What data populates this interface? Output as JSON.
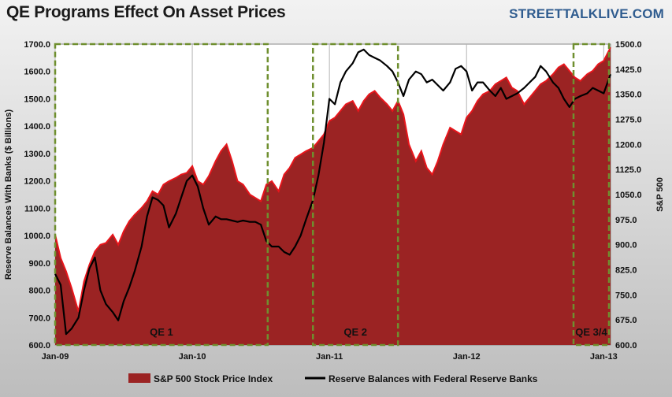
{
  "header": {
    "title": "QE Programs Effect On Asset Prices",
    "brand": "STREETTALKLIVE.COM"
  },
  "colors": {
    "sp_fill": "#9b2323",
    "sp_edge": "#e8151b",
    "reserve_line": "#000000",
    "qe_box": "#6f8f2f",
    "grid": "#b5b5b5",
    "plot_bg": "#ffffff"
  },
  "chart_data": {
    "type": "area",
    "title": "QE Programs Effect On Asset Prices",
    "x_tick_labels": [
      "Jan-09",
      "Jan-10",
      "Jan-11",
      "Jan-12",
      "Jan-13"
    ],
    "xlim": [
      2009.0,
      2013.05
    ],
    "left_axis": {
      "label": "Reserve Balances  With Banks  ($ Billions)",
      "ylim": [
        600,
        1700
      ],
      "ticks": [
        "600.0",
        "700.0",
        "800.0",
        "900.0",
        "1000.0",
        "1100.0",
        "1200.0",
        "1300.0",
        "1400.0",
        "1500.0",
        "1600.0",
        "1700.0"
      ]
    },
    "right_axis": {
      "label": "S&P 500",
      "ylim": [
        600,
        1500
      ],
      "ticks": [
        "600.0",
        "675.0",
        "750.0",
        "825.0",
        "900.0",
        "975.0",
        "1050.0",
        "1125.0",
        "1200.0",
        "1275.0",
        "1350.0",
        "1425.0",
        "1500.0"
      ]
    },
    "grid": "vertical",
    "legend_position": "bottom",
    "series": [
      {
        "name": "S&P 500 Stock Price Index",
        "kind": "area",
        "axis": "right",
        "x": [
          2009.0,
          2009.04,
          2009.08,
          2009.12,
          2009.17,
          2009.21,
          2009.25,
          2009.29,
          2009.33,
          2009.37,
          2009.42,
          2009.46,
          2009.5,
          2009.54,
          2009.58,
          2009.63,
          2009.67,
          2009.71,
          2009.75,
          2009.79,
          2009.83,
          2009.88,
          2009.92,
          2009.96,
          2010.0,
          2010.04,
          2010.08,
          2010.12,
          2010.17,
          2010.21,
          2010.25,
          2010.29,
          2010.33,
          2010.37,
          2010.42,
          2010.46,
          2010.5,
          2010.54,
          2010.58,
          2010.63,
          2010.67,
          2010.71,
          2010.75,
          2010.79,
          2010.83,
          2010.88,
          2010.92,
          2010.96,
          2011.0,
          2011.04,
          2011.08,
          2011.12,
          2011.17,
          2011.21,
          2011.25,
          2011.29,
          2011.33,
          2011.37,
          2011.42,
          2011.46,
          2011.5,
          2011.54,
          2011.58,
          2011.63,
          2011.67,
          2011.71,
          2011.75,
          2011.79,
          2011.83,
          2011.88,
          2011.92,
          2011.96,
          2012.0,
          2012.04,
          2012.08,
          2012.12,
          2012.17,
          2012.21,
          2012.25,
          2012.29,
          2012.33,
          2012.37,
          2012.42,
          2012.46,
          2012.5,
          2012.54,
          2012.58,
          2012.63,
          2012.67,
          2012.71,
          2012.75,
          2012.79,
          2012.83,
          2012.88,
          2012.92,
          2012.96,
          2013.0,
          2013.05
        ],
        "values": [
          930,
          860,
          820,
          770,
          700,
          790,
          840,
          880,
          900,
          905,
          930,
          900,
          940,
          970,
          990,
          1010,
          1030,
          1060,
          1050,
          1080,
          1090,
          1100,
          1110,
          1115,
          1135,
          1090,
          1080,
          1105,
          1150,
          1180,
          1200,
          1150,
          1090,
          1080,
          1050,
          1040,
          1030,
          1080,
          1090,
          1060,
          1110,
          1130,
          1160,
          1170,
          1180,
          1190,
          1210,
          1230,
          1270,
          1280,
          1300,
          1320,
          1330,
          1300,
          1330,
          1350,
          1360,
          1340,
          1320,
          1300,
          1330,
          1290,
          1200,
          1150,
          1180,
          1130,
          1110,
          1150,
          1200,
          1250,
          1240,
          1230,
          1280,
          1300,
          1330,
          1350,
          1360,
          1380,
          1390,
          1400,
          1370,
          1360,
          1320,
          1340,
          1360,
          1380,
          1390,
          1410,
          1430,
          1440,
          1420,
          1400,
          1390,
          1410,
          1420,
          1440,
          1450,
          1490
        ]
      },
      {
        "name": "Reserve Balances with Federal Reserve Banks",
        "kind": "line",
        "axis": "left",
        "x": [
          2009.0,
          2009.04,
          2009.08,
          2009.12,
          2009.17,
          2009.21,
          2009.25,
          2009.29,
          2009.33,
          2009.37,
          2009.42,
          2009.46,
          2009.5,
          2009.54,
          2009.58,
          2009.63,
          2009.67,
          2009.71,
          2009.75,
          2009.79,
          2009.83,
          2009.88,
          2009.92,
          2009.96,
          2010.0,
          2010.04,
          2010.08,
          2010.12,
          2010.17,
          2010.21,
          2010.25,
          2010.29,
          2010.33,
          2010.37,
          2010.42,
          2010.46,
          2010.5,
          2010.54,
          2010.58,
          2010.63,
          2010.67,
          2010.71,
          2010.75,
          2010.79,
          2010.83,
          2010.88,
          2010.92,
          2010.96,
          2011.0,
          2011.04,
          2011.08,
          2011.12,
          2011.17,
          2011.21,
          2011.25,
          2011.29,
          2011.33,
          2011.37,
          2011.42,
          2011.46,
          2011.5,
          2011.54,
          2011.58,
          2011.63,
          2011.67,
          2011.71,
          2011.75,
          2011.79,
          2011.83,
          2011.88,
          2011.92,
          2011.96,
          2012.0,
          2012.04,
          2012.08,
          2012.12,
          2012.17,
          2012.21,
          2012.25,
          2012.29,
          2012.33,
          2012.37,
          2012.42,
          2012.46,
          2012.5,
          2012.54,
          2012.58,
          2012.63,
          2012.67,
          2012.71,
          2012.75,
          2012.79,
          2012.83,
          2012.88,
          2012.92,
          2012.96,
          2013.0,
          2013.05
        ],
        "values": [
          860,
          820,
          640,
          660,
          700,
          800,
          880,
          920,
          800,
          750,
          720,
          690,
          760,
          810,
          870,
          960,
          1070,
          1140,
          1130,
          1110,
          1030,
          1080,
          1140,
          1200,
          1220,
          1180,
          1100,
          1040,
          1070,
          1060,
          1060,
          1055,
          1050,
          1055,
          1050,
          1050,
          1040,
          980,
          960,
          960,
          940,
          930,
          960,
          1000,
          1060,
          1130,
          1220,
          1340,
          1500,
          1480,
          1560,
          1600,
          1630,
          1670,
          1680,
          1660,
          1650,
          1640,
          1620,
          1600,
          1560,
          1510,
          1570,
          1600,
          1590,
          1560,
          1570,
          1550,
          1530,
          1560,
          1610,
          1620,
          1600,
          1530,
          1560,
          1560,
          1530,
          1510,
          1540,
          1500,
          1510,
          1520,
          1540,
          1560,
          1580,
          1620,
          1600,
          1560,
          1540,
          1500,
          1470,
          1500,
          1510,
          1520,
          1540,
          1530,
          1520,
          1590
        ]
      }
    ],
    "annotations": [
      {
        "label": "QE 1",
        "x_start": 2009.0,
        "x_end": 2010.55
      },
      {
        "label": "QE 2",
        "x_start": 2010.88,
        "x_end": 2011.5
      },
      {
        "label": "QE 3/4",
        "x_start": 2012.78,
        "x_end": 2013.05
      }
    ]
  }
}
